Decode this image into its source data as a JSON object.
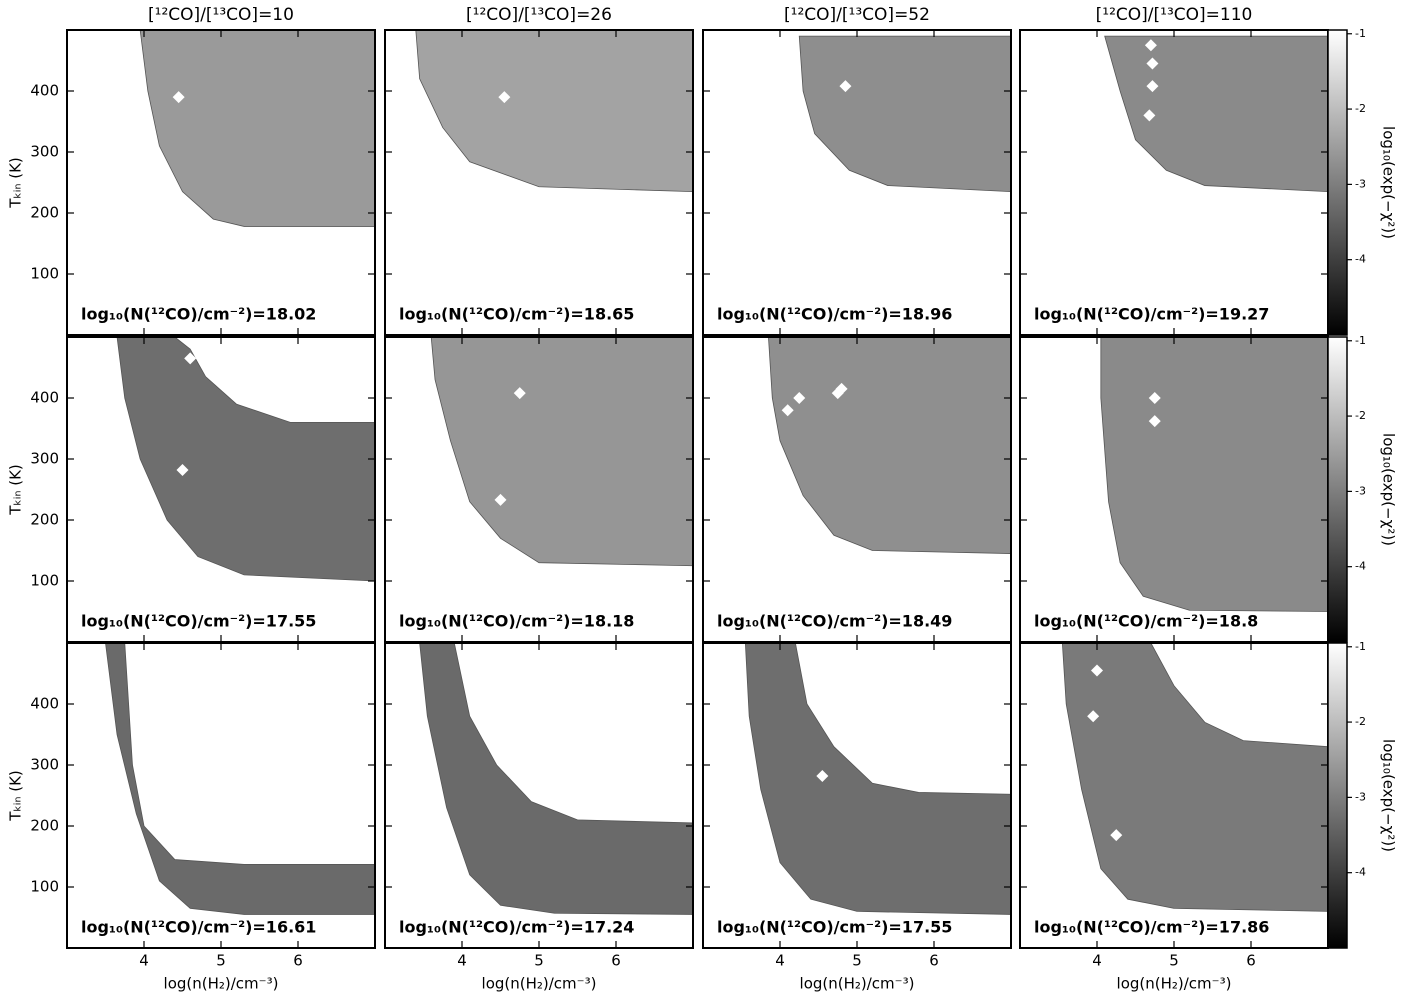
{
  "chart_data": [
    {
      "type": "contour",
      "title": "[¹²CO]/[¹³CO]=10",
      "annotation": "log₁₀(N(¹²CO)/cm⁻²)=18.02",
      "ylabel": "Tₖᵢₙ (K)",
      "xlim": [
        3,
        7
      ],
      "ylim": [
        0,
        500
      ],
      "xticks": [
        4,
        5,
        6
      ],
      "yticks": [
        100,
        200,
        300,
        400
      ],
      "fill_color": "#9a9a9a",
      "region": {
        "x": [
          3.95,
          7,
          7,
          5.3,
          4.9,
          4.5,
          4.2,
          4.05
        ],
        "y": [
          500,
          500,
          178,
          178,
          190,
          235,
          310,
          400
        ]
      },
      "best_fit": {
        "x": [
          4.45
        ],
        "y": [
          390
        ]
      }
    },
    {
      "type": "contour",
      "title": "[¹²CO]/[¹³CO]=26",
      "annotation": "log₁₀(N(¹²CO)/cm⁻²)=18.65",
      "xlim": [
        3,
        7
      ],
      "ylim": [
        0,
        500
      ],
      "xticks": [
        4,
        5,
        6
      ],
      "yticks": [
        100,
        200,
        300,
        400
      ],
      "fill_color": "#a3a3a3",
      "region": {
        "x": [
          3.4,
          7,
          7,
          5.0,
          4.1,
          3.75,
          3.45
        ],
        "y": [
          500,
          500,
          235,
          243,
          284,
          340,
          420
        ]
      },
      "best_fit": {
        "x": [
          4.55
        ],
        "y": [
          390
        ]
      }
    },
    {
      "type": "contour",
      "title": "[¹²CO]/[¹³CO]=52",
      "annotation": "log₁₀(N(¹²CO)/cm⁻²)=18.96",
      "xlim": [
        3,
        7
      ],
      "ylim": [
        0,
        500
      ],
      "xticks": [
        4,
        5,
        6
      ],
      "yticks": [
        100,
        200,
        300,
        400
      ],
      "fill_color": "#8e8e8e",
      "region": {
        "x": [
          4.25,
          7,
          7,
          5.4,
          4.9,
          4.45,
          4.3
        ],
        "y": [
          490,
          490,
          235,
          245,
          270,
          330,
          400
        ]
      },
      "best_fit": {
        "x": [
          4.85
        ],
        "y": [
          408
        ]
      }
    },
    {
      "type": "contour",
      "title": "[¹²CO]/[¹³CO]=110",
      "annotation": "log₁₀(N(¹²CO)/cm⁻²)=19.27",
      "xlim": [
        3,
        7
      ],
      "ylim": [
        0,
        500
      ],
      "xticks": [
        4,
        5,
        6
      ],
      "yticks": [
        100,
        200,
        300,
        400
      ],
      "fill_color": "#8a8a8a",
      "region": {
        "x": [
          4.1,
          7,
          7,
          5.4,
          4.9,
          4.5,
          4.3
        ],
        "y": [
          490,
          490,
          235,
          245,
          270,
          320,
          400
        ]
      },
      "best_fit": {
        "x": [
          4.7,
          4.72,
          4.72,
          4.68
        ],
        "y": [
          475,
          445,
          408,
          360
        ]
      },
      "colorbar": {
        "clim": [
          -5,
          -0.95
        ],
        "ticks": [
          -1,
          -2,
          -3,
          -4
        ],
        "label": "log₁₀(exp(−χ²))"
      }
    },
    {
      "type": "contour",
      "annotation": "log₁₀(N(¹²CO)/cm⁻²)=17.55",
      "ylabel": "Tₖᵢₙ (K)",
      "xlim": [
        3,
        7
      ],
      "ylim": [
        0,
        500
      ],
      "xticks": [
        4,
        5,
        6
      ],
      "yticks": [
        100,
        200,
        300,
        400
      ],
      "fill_color": "#6e6e6e",
      "region": {
        "x": [
          3.65,
          4.4,
          4.6,
          4.8,
          5.2,
          5.9,
          7,
          7,
          5.3,
          4.7,
          4.3,
          3.95,
          3.75
        ],
        "y": [
          500,
          500,
          480,
          435,
          390,
          360,
          360,
          100,
          110,
          140,
          200,
          300,
          400
        ]
      },
      "best_fit": {
        "x": [
          4.6,
          4.5
        ],
        "y": [
          465,
          282
        ]
      }
    },
    {
      "type": "contour",
      "annotation": "log₁₀(N(¹²CO)/cm⁻²)=18.18",
      "xlim": [
        3,
        7
      ],
      "ylim": [
        0,
        500
      ],
      "xticks": [
        4,
        5,
        6
      ],
      "yticks": [
        100,
        200,
        300,
        400
      ],
      "fill_color": "#969696",
      "region": {
        "x": [
          3.6,
          7,
          7,
          5,
          4.5,
          4.1,
          3.85,
          3.65
        ],
        "y": [
          500,
          500,
          125,
          130,
          170,
          230,
          330,
          430
        ]
      },
      "best_fit": {
        "x": [
          4.75,
          4.5
        ],
        "y": [
          408,
          233
        ]
      }
    },
    {
      "type": "contour",
      "annotation": "log₁₀(N(¹²CO)/cm⁻²)=18.49",
      "xlim": [
        3,
        7
      ],
      "ylim": [
        0,
        500
      ],
      "xticks": [
        4,
        5,
        6
      ],
      "yticks": [
        100,
        200,
        300,
        400
      ],
      "fill_color": "#8f8f8f",
      "region": {
        "x": [
          3.85,
          7,
          7,
          5.2,
          4.7,
          4.3,
          4.0,
          3.9
        ],
        "y": [
          500,
          500,
          145,
          150,
          175,
          240,
          330,
          400
        ]
      },
      "best_fit": {
        "x": [
          4.25,
          4.1,
          4.75,
          4.8
        ],
        "y": [
          400,
          380,
          408,
          415
        ]
      }
    },
    {
      "type": "contour",
      "annotation": "log₁₀(N(¹²CO)/cm⁻²)=18.8",
      "xlim": [
        3,
        7
      ],
      "ylim": [
        0,
        500
      ],
      "xticks": [
        4,
        5,
        6
      ],
      "yticks": [
        100,
        200,
        300,
        400
      ],
      "fill_color": "#8a8a8a",
      "region": {
        "x": [
          4.05,
          7,
          7,
          5.2,
          4.6,
          4.3,
          4.15,
          4.05
        ],
        "y": [
          500,
          500,
          50,
          52,
          75,
          130,
          230,
          400
        ]
      },
      "best_fit": {
        "x": [
          4.75,
          4.75
        ],
        "y": [
          400,
          362
        ]
      },
      "colorbar": {
        "clim": [
          -5,
          -0.95
        ],
        "ticks": [
          -1,
          -2,
          -3,
          -4
        ],
        "label": "log₁₀(exp(−χ²))"
      }
    },
    {
      "type": "contour",
      "annotation": "log₁₀(N(¹²CO)/cm⁻²)=16.61",
      "ylabel": "Tₖᵢₙ (K)",
      "xlabel": "log(n(H₂)/cm⁻³)",
      "xlim": [
        3,
        7
      ],
      "ylim": [
        0,
        500
      ],
      "xticks": [
        4,
        5,
        6
      ],
      "yticks": [
        100,
        200,
        300,
        400
      ],
      "fill_color": "#6a6a6a",
      "region": {
        "x": [
          3.5,
          3.75,
          3.85,
          4.0,
          4.4,
          5.3,
          7,
          7,
          5.3,
          4.6,
          4.2,
          3.9,
          3.65
        ],
        "y": [
          500,
          500,
          300,
          200,
          145,
          137,
          137,
          55,
          55,
          65,
          110,
          220,
          350
        ]
      },
      "best_fit": {
        "x": [],
        "y": []
      }
    },
    {
      "type": "contour",
      "annotation": "log₁₀(N(¹²CO)/cm⁻²)=17.24",
      "xlabel": "log(n(H₂)/cm⁻³)",
      "xlim": [
        3,
        7
      ],
      "ylim": [
        0,
        500
      ],
      "xticks": [
        4,
        5,
        6
      ],
      "yticks": [
        100,
        200,
        300,
        400
      ],
      "fill_color": "#6a6a6a",
      "region": {
        "x": [
          3.45,
          3.9,
          4.1,
          4.45,
          4.9,
          5.5,
          7,
          7,
          5.2,
          4.5,
          4.1,
          3.8,
          3.55
        ],
        "y": [
          500,
          500,
          380,
          300,
          240,
          210,
          205,
          55,
          57,
          70,
          120,
          230,
          380
        ]
      },
      "best_fit": {
        "x": [],
        "y": []
      }
    },
    {
      "type": "contour",
      "annotation": "log₁₀(N(¹²CO)/cm⁻²)=17.55",
      "xlabel": "log(n(H₂)/cm⁻³)",
      "xlim": [
        3,
        7
      ],
      "ylim": [
        0,
        500
      ],
      "xticks": [
        4,
        5,
        6
      ],
      "yticks": [
        100,
        200,
        300,
        400
      ],
      "fill_color": "#6e6e6e",
      "region": {
        "x": [
          3.55,
          4.2,
          4.35,
          4.7,
          5.2,
          5.8,
          7,
          7,
          5,
          4.4,
          4.0,
          3.75,
          3.6
        ],
        "y": [
          500,
          500,
          400,
          330,
          270,
          255,
          252,
          55,
          60,
          80,
          140,
          260,
          380
        ]
      },
      "best_fit": {
        "x": [
          4.55
        ],
        "y": [
          282
        ]
      }
    },
    {
      "type": "contour",
      "annotation": "log₁₀(N(¹²CO)/cm⁻²)=17.86",
      "xlabel": "log(n(H₂)/cm⁻³)",
      "xlim": [
        3,
        7
      ],
      "ylim": [
        0,
        500
      ],
      "xticks": [
        4,
        5,
        6
      ],
      "yticks": [
        100,
        200,
        300,
        400
      ],
      "fill_color": "#7a7a7a",
      "region": {
        "x": [
          3.55,
          4.7,
          5.0,
          5.4,
          5.9,
          7,
          7,
          5,
          4.4,
          4.05,
          3.8,
          3.6
        ],
        "y": [
          500,
          500,
          430,
          370,
          340,
          330,
          60,
          65,
          80,
          130,
          260,
          400
        ]
      },
      "best_fit": {
        "x": [
          4.0,
          3.95,
          4.25
        ],
        "y": [
          455,
          380,
          185
        ]
      },
      "colorbar": {
        "clim": [
          -5,
          -0.95
        ],
        "ticks": [
          -1,
          -2,
          -3,
          -4
        ],
        "label": "log₁₀(exp(−χ²))"
      }
    }
  ]
}
